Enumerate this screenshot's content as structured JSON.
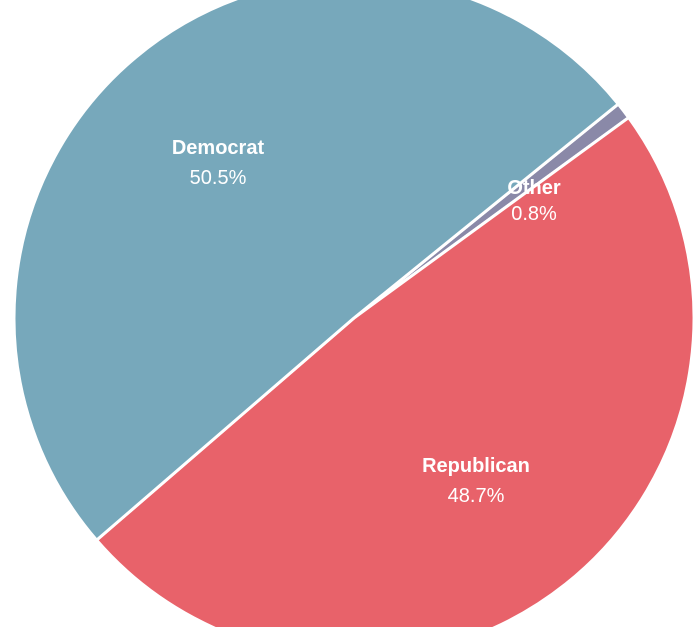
{
  "chart_data": {
    "type": "pie",
    "categories": [
      "Democrat",
      "Republican",
      "Other"
    ],
    "values": [
      50.5,
      48.7,
      0.8
    ],
    "value_labels": [
      "50.5%",
      "48.7%",
      "0.8%"
    ],
    "colors": [
      "#77a8bb",
      "#e8626a",
      "#8a89a8"
    ],
    "title": "",
    "legend": "none"
  }
}
